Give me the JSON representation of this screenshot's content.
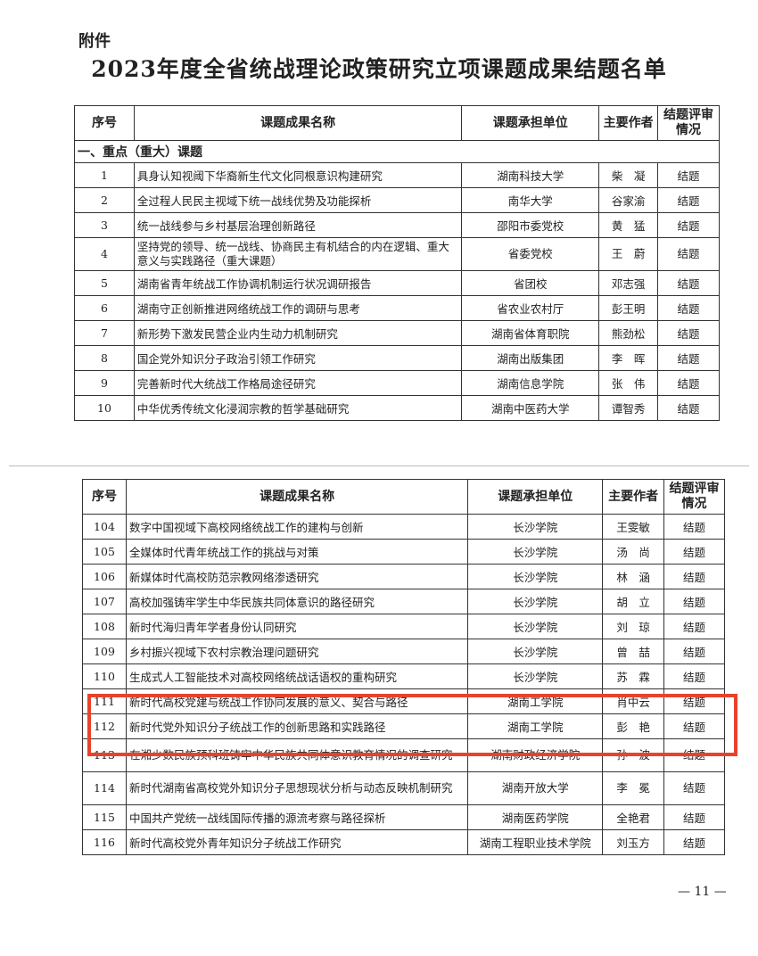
{
  "attachment_label": "附件",
  "title": "2023年度全省统战理论政策研究立项课题成果结题名单",
  "headers": {
    "no": "序号",
    "name": "课题成果名称",
    "unit": "课题承担单位",
    "author": "主要作者",
    "status": "结题评审情况"
  },
  "section1": "一、重点（重大）课题",
  "table1": [
    {
      "no": "1",
      "name": "具身认知视阈下华裔新生代文化同根意识构建研究",
      "unit": "湖南科技大学",
      "author": "柴　凝",
      "status": "结题"
    },
    {
      "no": "2",
      "name": "全过程人民民主视域下统一战线优势及功能探析",
      "unit": "南华大学",
      "author": "谷家渝",
      "status": "结题"
    },
    {
      "no": "3",
      "name": "统一战线参与乡村基层治理创新路径",
      "unit": "邵阳市委党校",
      "author": "黄　猛",
      "status": "结题"
    },
    {
      "no": "4",
      "name": "坚持党的领导、统一战线、协商民主有机结合的内在逻辑、重大意义与实践路径（重大课题）",
      "unit": "省委党校",
      "author": "王　蔚",
      "status": "结题"
    },
    {
      "no": "5",
      "name": "湖南省青年统战工作协调机制运行状况调研报告",
      "unit": "省团校",
      "author": "邓志强",
      "status": "结题"
    },
    {
      "no": "6",
      "name": "湖南守正创新推进网络统战工作的调研与思考",
      "unit": "省农业农村厅",
      "author": "彭王明",
      "status": "结题"
    },
    {
      "no": "7",
      "name": "新形势下激发民营企业内生动力机制研究",
      "unit": "湖南省体育职院",
      "author": "熊劲松",
      "status": "结题"
    },
    {
      "no": "8",
      "name": "国企党外知识分子政治引领工作研究",
      "unit": "湖南出版集团",
      "author": "李　晖",
      "status": "结题"
    },
    {
      "no": "9",
      "name": "完善新时代大统战工作格局途径研究",
      "unit": "湖南信息学院",
      "author": "张　伟",
      "status": "结题"
    },
    {
      "no": "10",
      "name": "中华优秀传统文化浸润宗教的哲学基础研究",
      "unit": "湖南中医药大学",
      "author": "谭智秀",
      "status": "结题"
    }
  ],
  "table2": [
    {
      "no": "104",
      "name": "数字中国视域下高校网络统战工作的建构与创新",
      "unit": "长沙学院",
      "author": "王雯敏",
      "status": "结题"
    },
    {
      "no": "105",
      "name": "全媒体时代青年统战工作的挑战与对策",
      "unit": "长沙学院",
      "author": "汤　尚",
      "status": "结题"
    },
    {
      "no": "106",
      "name": "新媒体时代高校防范宗教网络渗透研究",
      "unit": "长沙学院",
      "author": "林　涵",
      "status": "结题"
    },
    {
      "no": "107",
      "name": "高校加强铸牢学生中华民族共同体意识的路径研究",
      "unit": "长沙学院",
      "author": "胡　立",
      "status": "结题"
    },
    {
      "no": "108",
      "name": "新时代海归青年学者身份认同研究",
      "unit": "长沙学院",
      "author": "刘　琼",
      "status": "结题"
    },
    {
      "no": "109",
      "name": "乡村振兴视域下农村宗教治理问题研究",
      "unit": "长沙学院",
      "author": "曾　喆",
      "status": "结题"
    },
    {
      "no": "110",
      "name": "生成式人工智能技术对高校网络统战话语权的重构研究",
      "unit": "长沙学院",
      "author": "苏　霖",
      "status": "结题"
    },
    {
      "no": "111",
      "name": "新时代高校党建与统战工作协同发展的意义、契合与路径",
      "unit": "湖南工学院",
      "author": "肖中云",
      "status": "结题"
    },
    {
      "no": "112",
      "name": "新时代党外知识分子统战工作的创新思路和实践路径",
      "unit": "湖南工学院",
      "author": "彭　艳",
      "status": "结题"
    },
    {
      "no": "113",
      "name": "在湘少数民族预科班铸牢中华民族共同体意识教育情况的调查研究",
      "unit": "湖南财政经济学院",
      "author": "孙　波",
      "status": "结题"
    },
    {
      "no": "114",
      "name": "新时代湖南省高校党外知识分子思想现状分析与动态反映机制研究",
      "unit": "湖南开放大学",
      "author": "李　冕",
      "status": "结题"
    },
    {
      "no": "115",
      "name": "中国共产党统一战线国际传播的源流考察与路径探析",
      "unit": "湖南医药学院",
      "author": "全艳君",
      "status": "结题"
    },
    {
      "no": "116",
      "name": "新时代高校党外青年知识分子统战工作研究",
      "unit": "湖南工程职业技术学院",
      "author": "刘玉方",
      "status": "结题"
    }
  ],
  "highlight_color": "#e8432a",
  "page_number": "— 11 —"
}
